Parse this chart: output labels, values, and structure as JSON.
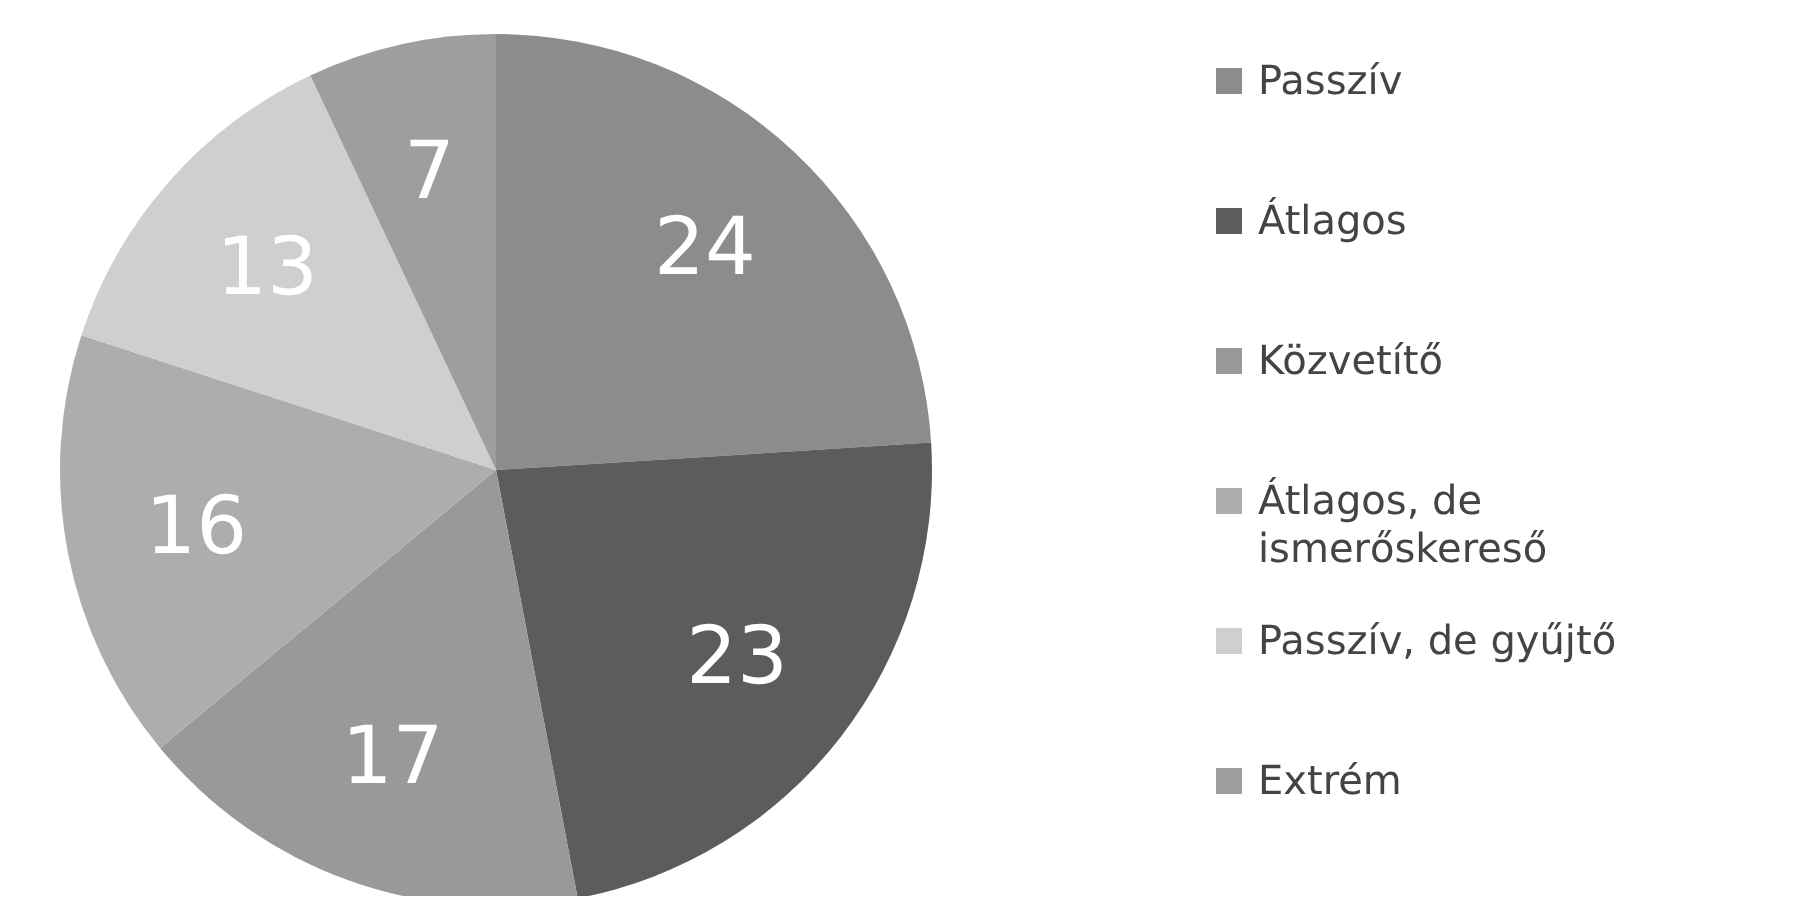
{
  "chart_data": {
    "type": "pie",
    "categories": [
      "Passzív",
      "Átlagos",
      "Közvetítő",
      "Átlagos, de ismerőskereső",
      "Passzív, de gyűjtő",
      "Extrém"
    ],
    "values": [
      24,
      23,
      17,
      16,
      13,
      7
    ],
    "colors": [
      "#8c8c8c",
      "#5c5c5c",
      "#999999",
      "#adadad",
      "#cfcfcf",
      "#9e9e9e"
    ],
    "data_labels": true,
    "legend": "right"
  }
}
